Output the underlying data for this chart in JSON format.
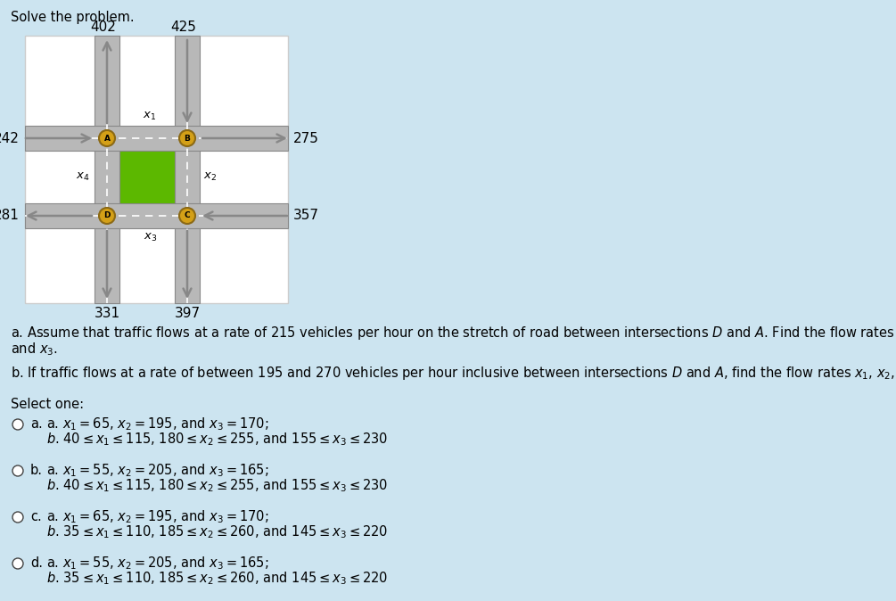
{
  "bg_color": "#cce4f0",
  "diagram_bg": "#ffffff",
  "title": "Solve the problem.",
  "road_color": "#b8b8b8",
  "road_border": "#888888",
  "green_fill": "#5cb800",
  "node_color": "#d4a017",
  "node_border": "#8B6914",
  "numbers": {
    "n402": "402",
    "n425": "425",
    "n242": "242",
    "n275": "275",
    "n281": "281",
    "n357": "357",
    "n331": "331",
    "n397": "397"
  },
  "question_a_pre": "a. Assume that traffic flows at a rate of 215 vehicles per hour on the stretch of road between intersections ",
  "question_a_mid1": "D",
  "question_a_mid2": " and ",
  "question_a_mid3": "A",
  "question_a_post": ". Find the flow rates ",
  "question_b_pre": "b. If traffic flows at a rate of between 195 and 270 vehicles per hour inclusive between intersections ",
  "question_b_mid1": "D",
  "question_b_mid2": " and ",
  "question_b_mid3": "A",
  "question_b_post": ", find the flow rates "
}
